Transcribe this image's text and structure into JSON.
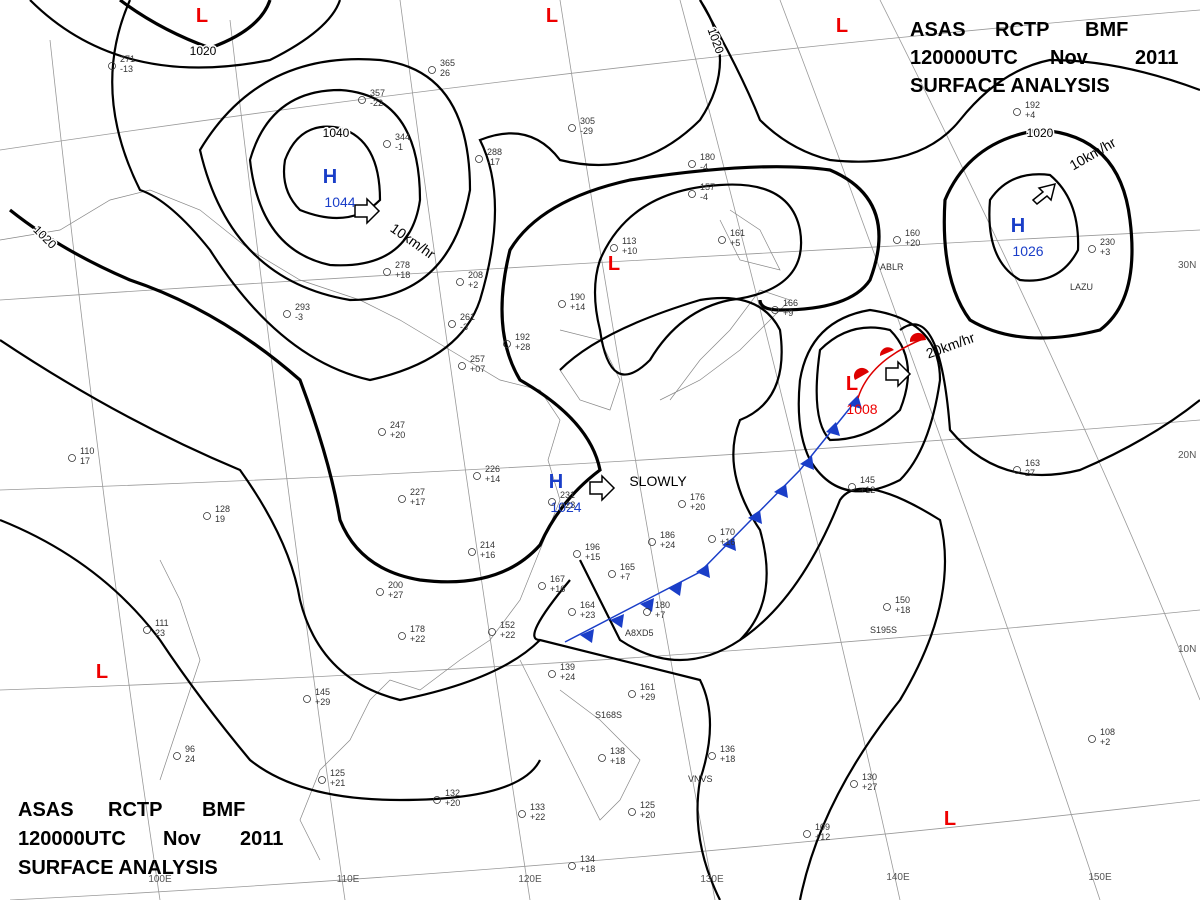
{
  "header_top": {
    "line1": [
      "ASAS",
      "RCTP",
      "BMF"
    ],
    "line2": [
      "120000UTC",
      "Nov",
      "2011"
    ],
    "line3": "SURFACE ANALYSIS"
  },
  "header_bottom": {
    "line1": [
      "ASAS",
      "RCTP",
      "BMF"
    ],
    "line2": [
      "120000UTC",
      "Nov",
      "2011"
    ],
    "line3": "SURFACE ANALYSIS"
  },
  "pressure_centers": [
    {
      "symbol": "H",
      "value": 1044
    },
    {
      "symbol": "H",
      "value": 1026
    },
    {
      "symbol": "H",
      "value": 1024
    },
    {
      "symbol": "L",
      "value": 1008
    },
    {
      "symbol": "L"
    },
    {
      "symbol": "L"
    },
    {
      "symbol": "L"
    },
    {
      "symbol": "L"
    },
    {
      "symbol": "L"
    },
    {
      "symbol": "L"
    }
  ],
  "isobar_labels": [
    1020,
    1040,
    1020,
    1020,
    1020
  ],
  "motion_labels": [
    "10km/hr",
    "SLOWLY",
    "20km/hr",
    "10km/hr"
  ],
  "latitude_labels": [
    "30N",
    "20N",
    "10N"
  ],
  "longitude_labels": [
    "100E",
    "110E",
    "120E",
    "130E",
    "140E",
    "150E"
  ],
  "stations": [
    {
      "pressure": 271,
      "tendency": "-13"
    },
    {
      "pressure": 365,
      "tendency": "26"
    },
    {
      "pressure": 357,
      "tendency": "-22"
    },
    {
      "pressure": 344,
      "tendency": "-1"
    },
    {
      "pressure": 305,
      "tendency": "-29"
    },
    {
      "pressure": 288,
      "tendency": "-17"
    },
    {
      "pressure": 180,
      "tendency": "-4"
    },
    {
      "pressure": 157,
      "tendency": "-4"
    },
    {
      "pressure": 113,
      "tendency": "+10"
    },
    {
      "pressure": 161,
      "tendency": "+5"
    },
    {
      "pressure": 190,
      "tendency": "+14"
    },
    {
      "pressure": 192,
      "tendency": "+28"
    },
    {
      "pressure": 166,
      "tendency": "+9"
    },
    {
      "pressure": 278,
      "tendency": "+18"
    },
    {
      "pressure": 208,
      "tendency": "+2"
    },
    {
      "pressure": 293,
      "tendency": "-3"
    },
    {
      "pressure": 261,
      "tendency": "-3"
    },
    {
      "pressure": 257,
      "tendency": "+07"
    },
    {
      "pressure": 247,
      "tendency": "+20"
    },
    {
      "pressure": 226,
      "tendency": "+14"
    },
    {
      "pressure": 227,
      "tendency": "+17"
    },
    {
      "pressure": 231,
      "tendency": "+23"
    },
    {
      "pressure": 214,
      "tendency": "+16"
    },
    {
      "pressure": 196,
      "tendency": "+15"
    },
    {
      "pressure": 176,
      "tendency": "+20"
    },
    {
      "pressure": 186,
      "tendency": "+24"
    },
    {
      "pressure": 170,
      "tendency": "+16"
    },
    {
      "pressure": 165,
      "tendency": "+7"
    },
    {
      "pressure": 180,
      "tendency": "+7"
    },
    {
      "pressure": 167,
      "tendency": "+16"
    },
    {
      "pressure": 164,
      "tendency": "+23"
    },
    {
      "pressure": 152,
      "tendency": "+22"
    },
    {
      "pressure": 200,
      "tendency": "+27"
    },
    {
      "pressure": 178,
      "tendency": "+22"
    },
    {
      "pressure": 145,
      "tendency": "+29"
    },
    {
      "pressure": 111,
      "tendency": "23"
    },
    {
      "pressure": 128,
      "tendency": "19"
    },
    {
      "pressure": 110,
      "tendency": "17"
    },
    {
      "pressure": 145,
      "tendency": "+12"
    },
    {
      "pressure": 163,
      "tendency": "27"
    },
    {
      "pressure": 230,
      "tendency": "+3"
    },
    {
      "pressure": 160,
      "tendency": "+20"
    },
    {
      "pressure": 192,
      "tendency": "+4"
    },
    {
      "pressure": 150,
      "tendency": "+18"
    },
    {
      "pressure": 139,
      "tendency": "+24"
    },
    {
      "pressure": 161,
      "tendency": "+29"
    },
    {
      "pressure": 138,
      "tendency": "+18"
    },
    {
      "pressure": 136,
      "tendency": "+18"
    },
    {
      "pressure": 130,
      "tendency": "+27"
    },
    {
      "pressure": 108,
      "tendency": "+2"
    },
    {
      "pressure": 109,
      "tendency": "+12"
    },
    {
      "pressure": 125,
      "tendency": "+20"
    },
    {
      "pressure": 133,
      "tendency": "+22"
    },
    {
      "pressure": 132,
      "tendency": "+20"
    },
    {
      "pressure": 134,
      "tendency": "+18"
    },
    {
      "pressure": 125,
      "tendency": "+21"
    },
    {
      "pressure": 96,
      "tendency": "24"
    }
  ],
  "station_ids": [
    "A8XD5",
    "VNVS",
    "LAZU",
    "ABLR",
    "S195S",
    "S168S"
  ]
}
